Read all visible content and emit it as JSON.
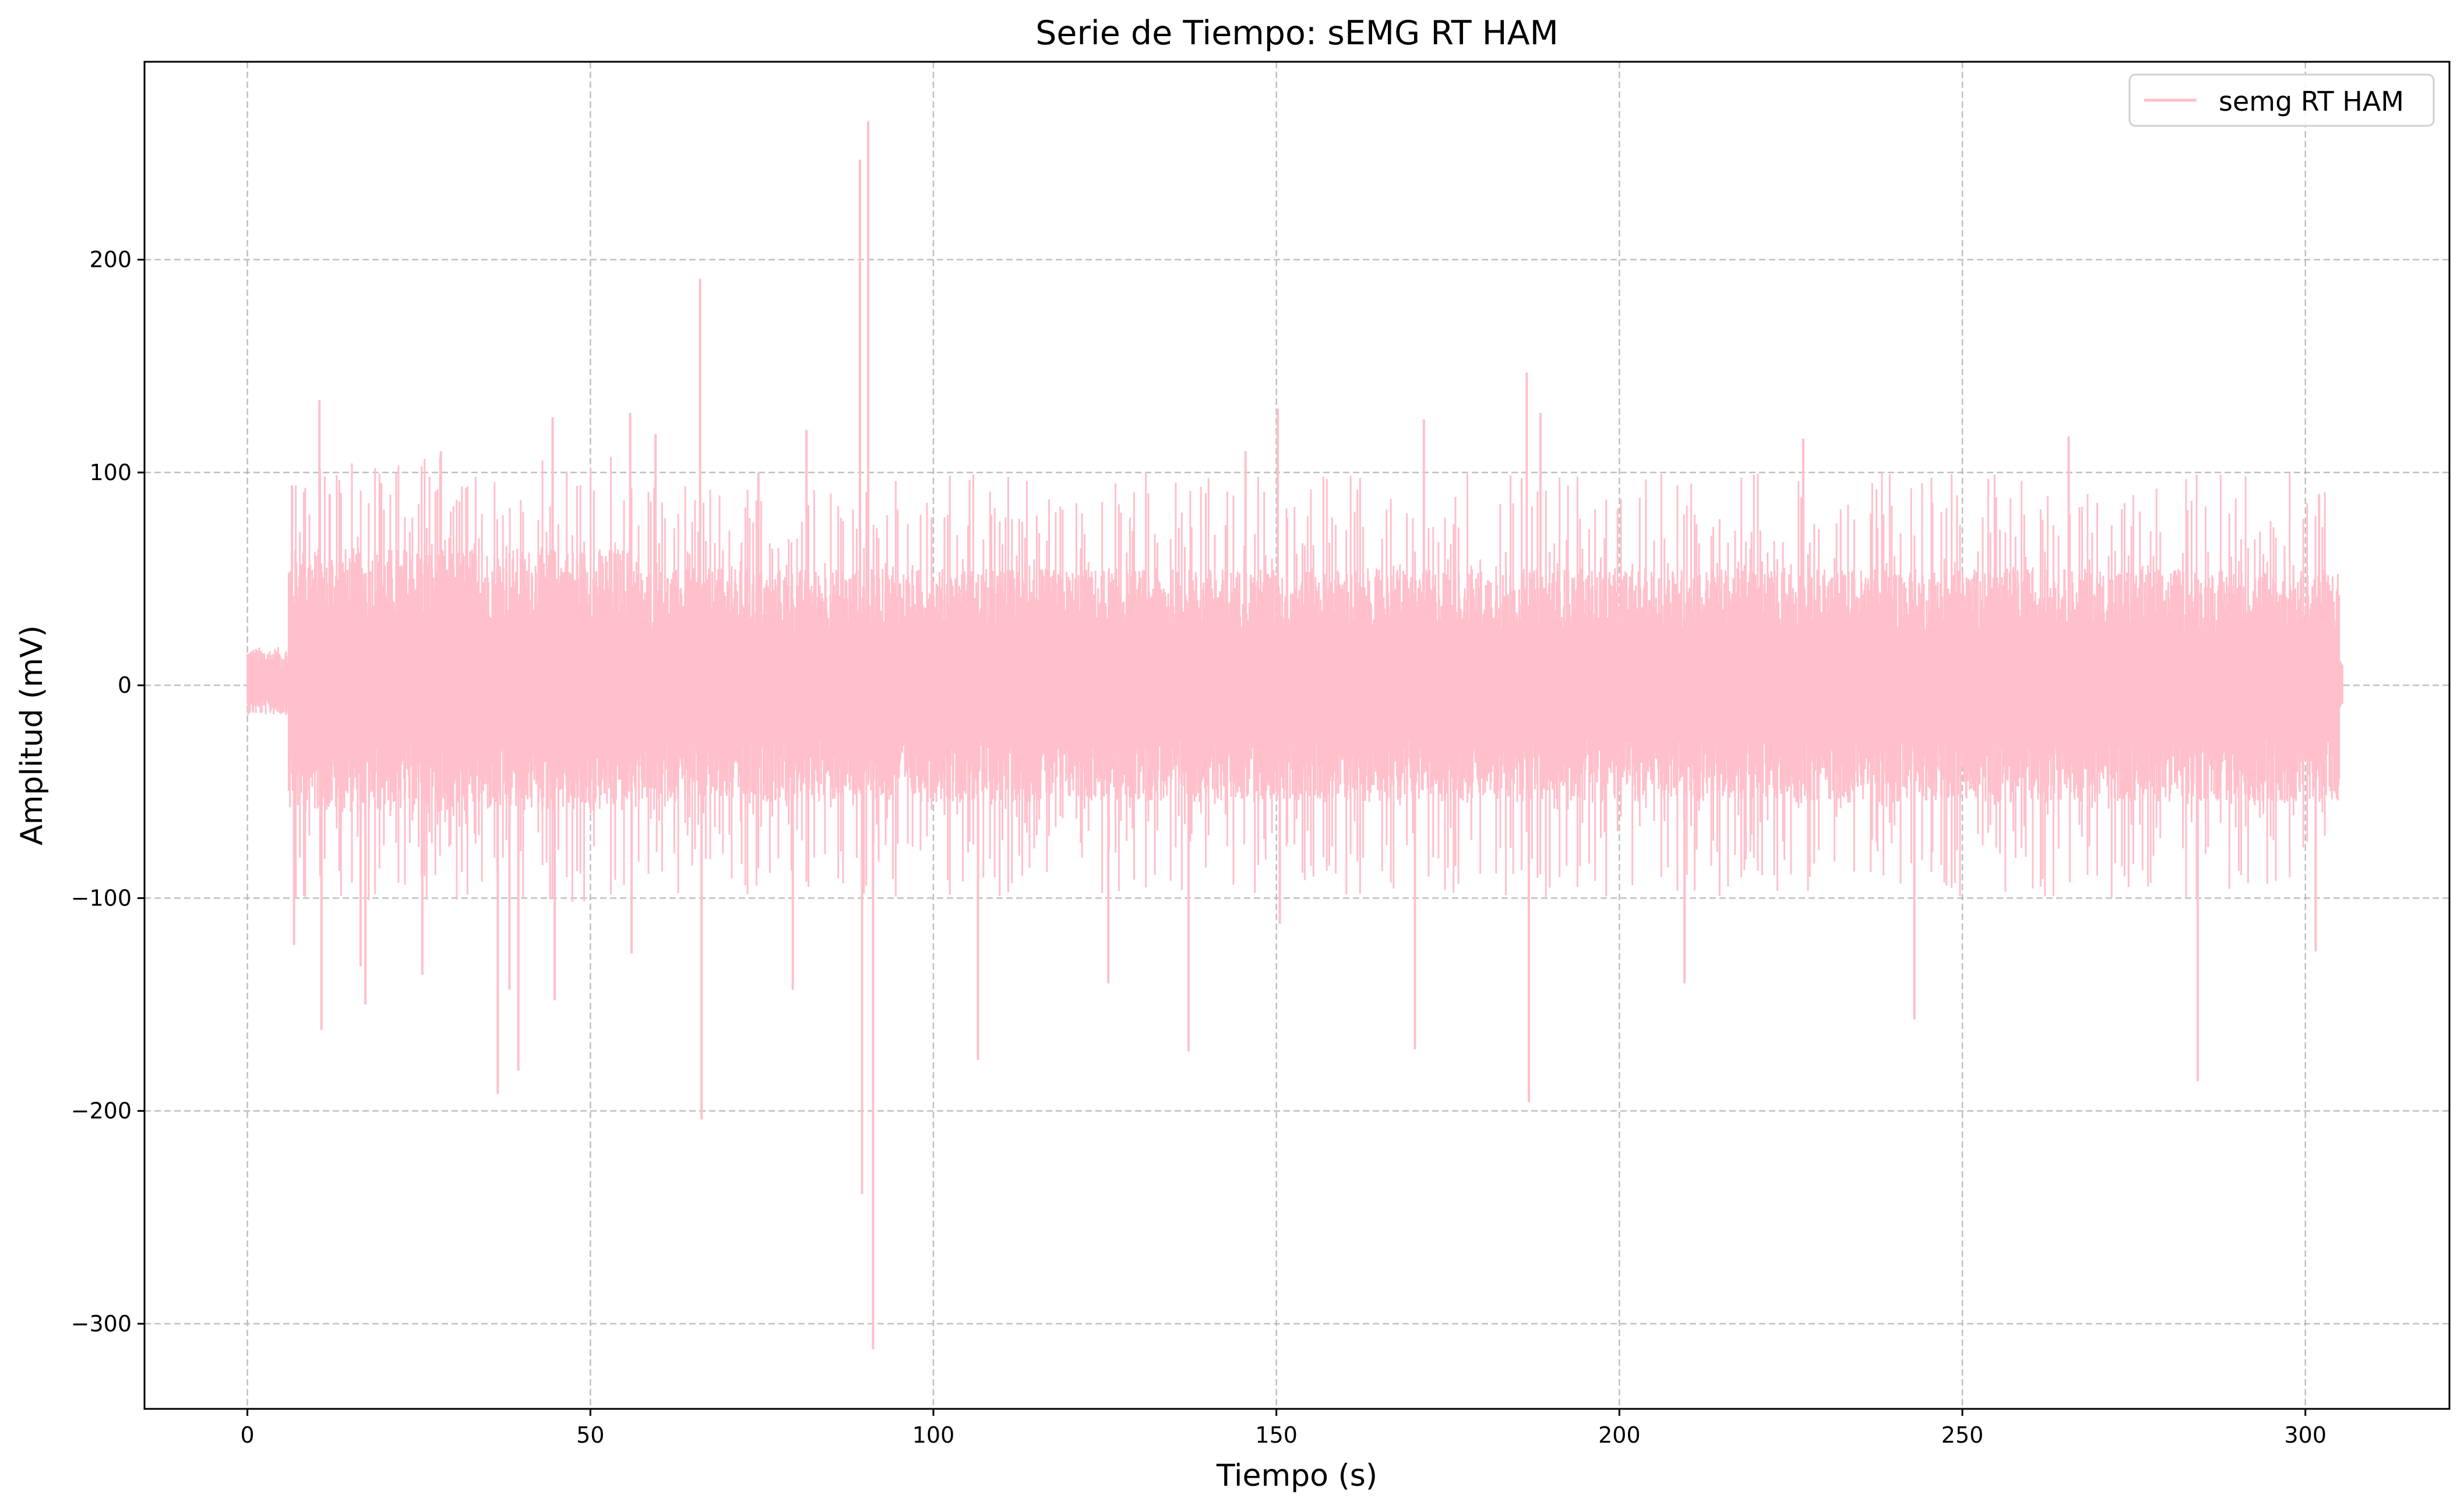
{
  "chart_data": {
    "type": "line",
    "title": "Serie de Tiempo: sEMG RT HAM",
    "xlabel": "Tiempo (s)",
    "ylabel": "Amplitud (mV)",
    "xlim": [
      -15,
      321
    ],
    "ylim": [
      -340,
      293
    ],
    "x_ticks": [
      0,
      50,
      100,
      150,
      200,
      250,
      300
    ],
    "y_ticks": [
      -300,
      -200,
      -100,
      0,
      100,
      200
    ],
    "x_tick_labels": [
      "0",
      "50",
      "100",
      "150",
      "200",
      "250",
      "300"
    ],
    "y_tick_labels": [
      "−300",
      "−200",
      "−100",
      "0",
      "100",
      "200"
    ],
    "grid": true,
    "legend_position": "top-right",
    "series": [
      {
        "name": "semg RT HAM",
        "color": "#ffc0cb",
        "x_start": 0,
        "x_end": 305.5,
        "envelope_segments": [
          {
            "x": [
              0,
              6
            ],
            "upper": 18,
            "lower": -14
          },
          {
            "x": [
              6,
              57
            ],
            "upper": 65,
            "lower": -60
          },
          {
            "x": [
              57,
              305
            ],
            "upper": 55,
            "lower": -55
          },
          {
            "x": [
              305,
              305.5
            ],
            "upper": 15,
            "lower": -12
          }
        ],
        "peaks": [
          {
            "x": 6.5,
            "y": 94
          },
          {
            "x": 6.8,
            "y": -122
          },
          {
            "x": 10.5,
            "y": 134
          },
          {
            "x": 10.8,
            "y": -162
          },
          {
            "x": 12,
            "y": 90
          },
          {
            "x": 16.5,
            "y": -132
          },
          {
            "x": 17.2,
            "y": -150
          },
          {
            "x": 19.5,
            "y": 95
          },
          {
            "x": 25.5,
            "y": -136
          },
          {
            "x": 28.2,
            "y": 110
          },
          {
            "x": 36.5,
            "y": -192
          },
          {
            "x": 38.2,
            "y": -143
          },
          {
            "x": 39.5,
            "y": -181
          },
          {
            "x": 44.5,
            "y": 126
          },
          {
            "x": 44.8,
            "y": -148
          },
          {
            "x": 55.8,
            "y": 128
          },
          {
            "x": 56,
            "y": -126
          },
          {
            "x": 59.5,
            "y": 118
          },
          {
            "x": 66,
            "y": 191
          },
          {
            "x": 66.2,
            "y": -204
          },
          {
            "x": 74.5,
            "y": 100
          },
          {
            "x": 79.5,
            "y": -143
          },
          {
            "x": 81.5,
            "y": 120
          },
          {
            "x": 89.3,
            "y": 247
          },
          {
            "x": 89.6,
            "y": -239
          },
          {
            "x": 90.5,
            "y": 265
          },
          {
            "x": 91.2,
            "y": -312
          },
          {
            "x": 106.5,
            "y": -176
          },
          {
            "x": 125.5,
            "y": -140
          },
          {
            "x": 137.2,
            "y": -172
          },
          {
            "x": 145.5,
            "y": 110
          },
          {
            "x": 150.2,
            "y": 130
          },
          {
            "x": 150.5,
            "y": -112
          },
          {
            "x": 170.2,
            "y": -171
          },
          {
            "x": 171.5,
            "y": 125
          },
          {
            "x": 186.5,
            "y": 147
          },
          {
            "x": 186.8,
            "y": -196
          },
          {
            "x": 188.5,
            "y": 128
          },
          {
            "x": 209.5,
            "y": -140
          },
          {
            "x": 226.8,
            "y": 116
          },
          {
            "x": 243,
            "y": -157
          },
          {
            "x": 265.5,
            "y": 117
          },
          {
            "x": 284.3,
            "y": -186
          },
          {
            "x": 301.5,
            "y": -125
          },
          {
            "x": 302,
            "y": 90
          }
        ]
      }
    ]
  }
}
